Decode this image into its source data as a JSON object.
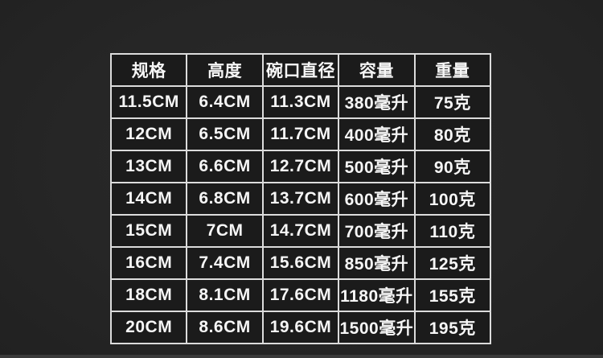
{
  "colors": {
    "page_background": "#262626",
    "cell_background": "#1b1b1b",
    "border": "#dcdcdc",
    "text": "#f6f6f6"
  },
  "table": {
    "headers": [
      "规格",
      "高度",
      "碗口直径",
      "容量",
      "重量"
    ],
    "rows": [
      [
        "11.5CM",
        "6.4CM",
        "11.3CM",
        "380毫升",
        "75克"
      ],
      [
        "12CM",
        "6.5CM",
        "11.7CM",
        "400毫升",
        "80克"
      ],
      [
        "13CM",
        "6.6CM",
        "12.7CM",
        "500毫升",
        "90克"
      ],
      [
        "14CM",
        "6.8CM",
        "13.7CM",
        "600毫升",
        "100克"
      ],
      [
        "15CM",
        "7CM",
        "14.7CM",
        "700毫升",
        "110克"
      ],
      [
        "16CM",
        "7.4CM",
        "15.6CM",
        "850毫升",
        "125克"
      ],
      [
        "18CM",
        "8.1CM",
        "17.6CM",
        "1180毫升",
        "155克"
      ],
      [
        "20CM",
        "8.6CM",
        "19.6CM",
        "1500毫升",
        "195克"
      ]
    ]
  },
  "chart_data": {
    "type": "table",
    "title": "",
    "columns": [
      "规格",
      "高度",
      "碗口直径",
      "容量",
      "重量"
    ],
    "rows": [
      [
        "11.5CM",
        "6.4CM",
        "11.3CM",
        "380毫升",
        "75克"
      ],
      [
        "12CM",
        "6.5CM",
        "11.7CM",
        "400毫升",
        "80克"
      ],
      [
        "13CM",
        "6.6CM",
        "12.7CM",
        "500毫升",
        "90克"
      ],
      [
        "14CM",
        "6.8CM",
        "13.7CM",
        "600毫升",
        "100克"
      ],
      [
        "15CM",
        "7CM",
        "14.7CM",
        "700毫升",
        "110克"
      ],
      [
        "16CM",
        "7.4CM",
        "15.6CM",
        "850毫升",
        "125克"
      ],
      [
        "18CM",
        "8.1CM",
        "17.6CM",
        "1180毫升",
        "155克"
      ],
      [
        "20CM",
        "8.6CM",
        "19.6CM",
        "1500毫升",
        "195克"
      ]
    ]
  }
}
